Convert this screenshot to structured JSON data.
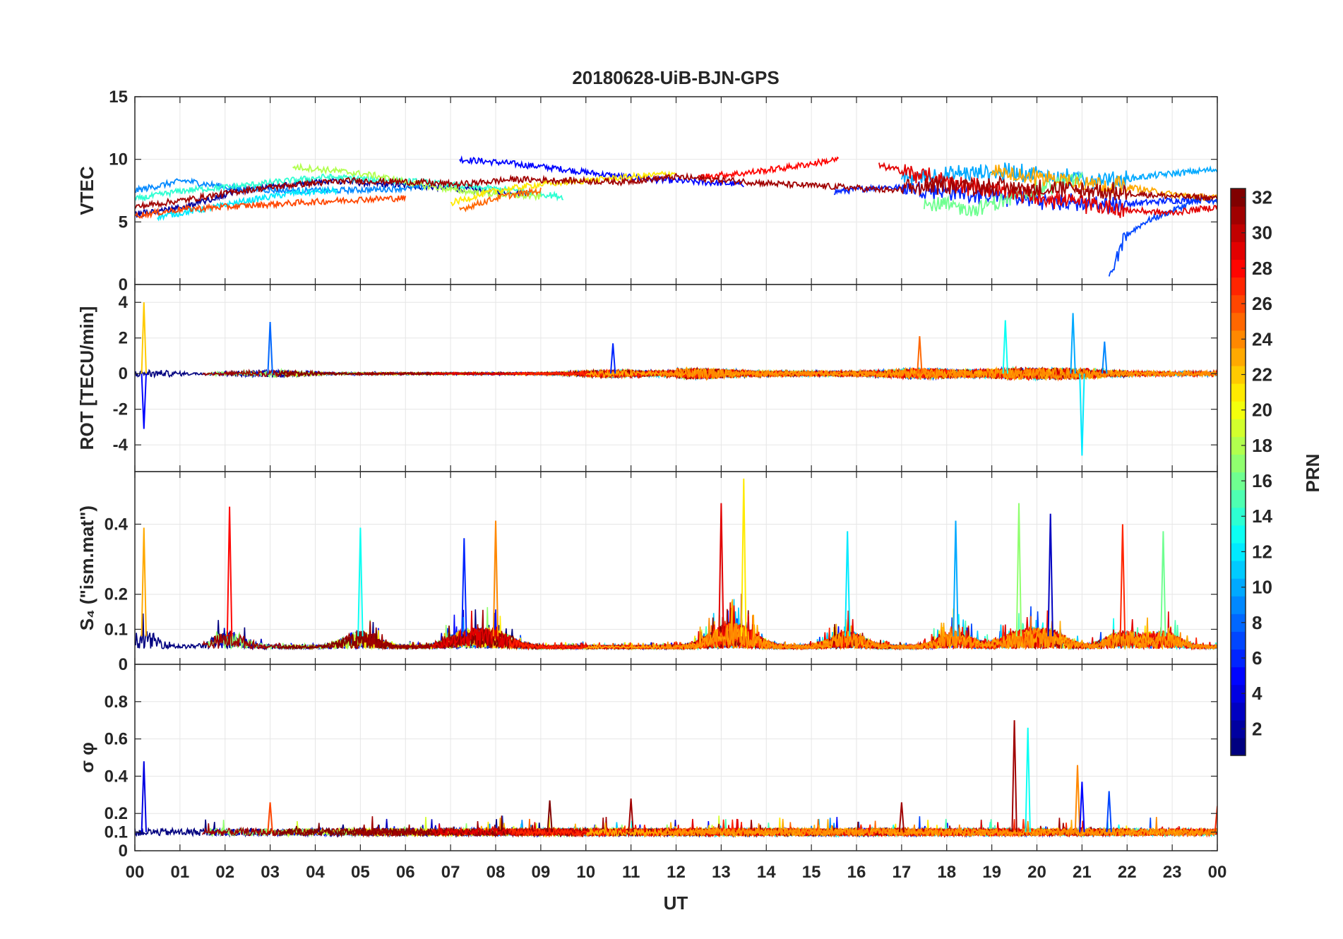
{
  "chart_data": {
    "type": "line",
    "title": "20180628-UiB-BJN-GPS",
    "xlabel": "UT",
    "x_ticks": [
      "00",
      "01",
      "02",
      "03",
      "04",
      "05",
      "06",
      "07",
      "08",
      "09",
      "10",
      "11",
      "12",
      "13",
      "14",
      "15",
      "16",
      "17",
      "18",
      "19",
      "20",
      "21",
      "22",
      "23",
      "00"
    ],
    "xlim_hours": [
      0,
      24
    ],
    "panels": [
      {
        "id": "vtec",
        "ylabel": "VTEC",
        "ylim": [
          0,
          15
        ],
        "yticks": [
          0,
          5,
          10,
          15
        ],
        "ytick_labels": [
          "0",
          "5",
          "10",
          "15"
        ],
        "baseline": 7.3,
        "noise": 0.5,
        "series": [
          {
            "prn": 2,
            "span": [
              0.0,
              8.8
            ],
            "values": [
              5.6,
              6.2,
              7.4,
              8.0,
              8.3,
              8.0,
              7.8,
              7.5,
              7.3
            ]
          },
          {
            "prn": 5,
            "span": [
              7.2,
              13.5
            ],
            "values": [
              10.0,
              9.7,
              9.3,
              8.8,
              8.4,
              8.2,
              8.0
            ]
          },
          {
            "prn": 6,
            "span": [
              15.5,
              24.0
            ],
            "values": [
              7.4,
              7.8,
              7.6,
              7.2,
              6.8,
              6.5,
              6.4,
              6.7,
              6.8
            ]
          },
          {
            "prn": 7,
            "span": [
              21.6,
              24.0
            ],
            "values": [
              0.5,
              4.0,
              5.0,
              5.6,
              6.2,
              6.8,
              6.5
            ]
          },
          {
            "prn": 9,
            "span": [
              0.0,
              6.5
            ],
            "values": [
              7.5,
              8.3,
              7.7,
              7.5,
              7.5,
              7.6,
              7.8
            ]
          },
          {
            "prn": 10,
            "span": [
              17.0,
              24.0
            ],
            "values": [
              8.5,
              8.8,
              9.0,
              8.6,
              8.3,
              8.8,
              9.2
            ]
          },
          {
            "prn": 12,
            "span": [
              0.5,
              4.5
            ],
            "values": [
              5.4,
              6.0,
              6.7,
              7.3,
              7.5
            ]
          },
          {
            "prn": 14,
            "span": [
              0.0,
              9.5
            ],
            "values": [
              6.8,
              7.5,
              7.8,
              8.2,
              8.6,
              8.4,
              8.2,
              7.8,
              7.5,
              7.0
            ]
          },
          {
            "prn": 16,
            "span": [
              17.5,
              21.0
            ],
            "values": [
              6.5,
              6.0,
              7.4,
              8.6
            ]
          },
          {
            "prn": 18,
            "span": [
              3.5,
              9.0
            ],
            "values": [
              9.4,
              9.1,
              8.7,
              8.0,
              7.5,
              7.2,
              7.0
            ]
          },
          {
            "prn": 21,
            "span": [
              7.0,
              12.0
            ],
            "values": [
              6.5,
              7.5,
              8.0,
              8.3,
              8.6,
              8.9
            ]
          },
          {
            "prn": 23,
            "span": [
              19.0,
              24.0
            ],
            "values": [
              9.0,
              8.6,
              8.2,
              7.8,
              7.2,
              6.9
            ]
          },
          {
            "prn": 25,
            "span": [
              7.2,
              9.0
            ],
            "values": [
              6.0,
              7.0,
              7.5
            ]
          },
          {
            "prn": 26,
            "span": [
              0.0,
              6.0
            ],
            "values": [
              5.5,
              6.0,
              6.2,
              6.4,
              6.6,
              6.8,
              6.9
            ]
          },
          {
            "prn": 28,
            "span": [
              12.5,
              15.6
            ],
            "values": [
              8.6,
              8.9,
              9.4,
              10.0
            ]
          },
          {
            "prn": 29,
            "span": [
              16.5,
              24.0
            ],
            "values": [
              9.5,
              8.6,
              7.8,
              7.2,
              6.6,
              6.0,
              5.7,
              6.2
            ]
          },
          {
            "prn": 31,
            "span": [
              0.0,
              24.0
            ],
            "values": [
              6.2,
              6.8,
              7.5,
              8.0,
              8.3,
              8.2,
              8.0,
              8.4,
              8.3,
              8.2,
              8.6,
              8.3,
              8.0,
              7.8,
              7.5,
              8.0,
              7.8,
              7.6,
              7.4,
              7.1,
              6.9
            ]
          }
        ]
      },
      {
        "id": "rot",
        "ylabel": "ROT [TECU/min]",
        "ylim": [
          -5.5,
          5
        ],
        "yticks": [
          -4,
          -2,
          0,
          2,
          4
        ],
        "ytick_labels": [
          "-4",
          "-2",
          "0",
          "2",
          "4"
        ],
        "activity_hours": [
          0.2,
          3.0,
          10.6,
          12.5,
          17.5,
          19.5,
          20.8
        ],
        "peak_values": [
          {
            "hour": 0.2,
            "value": 4.0,
            "prn": 22
          },
          {
            "hour": 0.2,
            "value": -3.1,
            "prn": 5
          },
          {
            "hour": 3.0,
            "value": 2.9,
            "prn": 8
          },
          {
            "hour": 10.6,
            "value": 1.7,
            "prn": 6
          },
          {
            "hour": 17.4,
            "value": 2.1,
            "prn": 25
          },
          {
            "hour": 19.3,
            "value": 3.0,
            "prn": 13
          },
          {
            "hour": 20.8,
            "value": 3.4,
            "prn": 10
          },
          {
            "hour": 21.0,
            "value": -4.6,
            "prn": 12
          },
          {
            "hour": 21.5,
            "value": 1.8,
            "prn": 9
          }
        ]
      },
      {
        "id": "s4",
        "ylabel": "S₄ (\"ism.mat\")",
        "ylim": [
          0,
          0.55
        ],
        "yticks": [
          0,
          0.1,
          0.2,
          0.4
        ],
        "ytick_labels": [
          "0",
          "0.1",
          "0.2",
          "0.4"
        ],
        "peak_values": [
          {
            "hour": 0.2,
            "value": 0.39,
            "prn": 23
          },
          {
            "hour": 2.1,
            "value": 0.45,
            "prn": 28
          },
          {
            "hour": 5.0,
            "value": 0.39,
            "prn": 13
          },
          {
            "hour": 7.3,
            "value": 0.36,
            "prn": 6
          },
          {
            "hour": 8.0,
            "value": 0.41,
            "prn": 24
          },
          {
            "hour": 13.0,
            "value": 0.46,
            "prn": 29
          },
          {
            "hour": 13.5,
            "value": 0.53,
            "prn": 21
          },
          {
            "hour": 15.8,
            "value": 0.38,
            "prn": 12
          },
          {
            "hour": 18.2,
            "value": 0.41,
            "prn": 10
          },
          {
            "hour": 19.6,
            "value": 0.46,
            "prn": 17
          },
          {
            "hour": 20.3,
            "value": 0.43,
            "prn": 3
          },
          {
            "hour": 21.9,
            "value": 0.4,
            "prn": 27
          },
          {
            "hour": 22.8,
            "value": 0.38,
            "prn": 16
          }
        ]
      },
      {
        "id": "sigma_phi",
        "ylabel": "σ φ",
        "ylim": [
          0,
          1.0
        ],
        "yticks": [
          0,
          0.1,
          0.2,
          0.4,
          0.6,
          0.8
        ],
        "ytick_labels": [
          "0",
          "0.1",
          "0.2",
          "0.4",
          "0.6",
          "0.8"
        ],
        "peak_values": [
          {
            "hour": 0.2,
            "value": 0.48,
            "prn": 4
          },
          {
            "hour": 3.0,
            "value": 0.26,
            "prn": 26
          },
          {
            "hour": 9.2,
            "value": 0.27,
            "prn": 32
          },
          {
            "hour": 11.0,
            "value": 0.28,
            "prn": 31
          },
          {
            "hour": 17.0,
            "value": 0.26,
            "prn": 31
          },
          {
            "hour": 19.5,
            "value": 0.7,
            "prn": 31
          },
          {
            "hour": 19.8,
            "value": 0.66,
            "prn": 13
          },
          {
            "hour": 20.9,
            "value": 0.46,
            "prn": 24
          },
          {
            "hour": 21.0,
            "value": 0.37,
            "prn": 5
          },
          {
            "hour": 21.6,
            "value": 0.32,
            "prn": 7
          },
          {
            "hour": 24.0,
            "value": 0.24,
            "prn": 27
          }
        ]
      }
    ],
    "colorbar": {
      "label": "PRN",
      "range": [
        1,
        32
      ],
      "ticks": [
        2,
        4,
        6,
        8,
        10,
        12,
        14,
        16,
        18,
        20,
        22,
        24,
        26,
        28,
        30,
        32
      ],
      "tick_labels": [
        "2",
        "4",
        "6",
        "8",
        "10",
        "12",
        "14",
        "16",
        "18",
        "20",
        "22",
        "24",
        "26",
        "28",
        "30",
        "32"
      ],
      "colormap": "jet"
    }
  }
}
